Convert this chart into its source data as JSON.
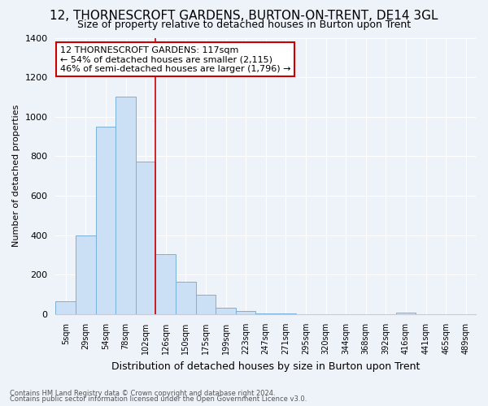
{
  "title": "12, THORNESCROFT GARDENS, BURTON-ON-TRENT, DE14 3GL",
  "subtitle": "Size of property relative to detached houses in Burton upon Trent",
  "xlabel": "Distribution of detached houses by size in Burton upon Trent",
  "ylabel": "Number of detached properties",
  "footnote1": "Contains HM Land Registry data © Crown copyright and database right 2024.",
  "footnote2": "Contains public sector information licensed under the Open Government Licence v3.0.",
  "bin_labels": [
    "5sqm",
    "29sqm",
    "54sqm",
    "78sqm",
    "102sqm",
    "126sqm",
    "150sqm",
    "175sqm",
    "199sqm",
    "223sqm",
    "247sqm",
    "271sqm",
    "295sqm",
    "320sqm",
    "344sqm",
    "368sqm",
    "392sqm",
    "416sqm",
    "441sqm",
    "465sqm",
    "489sqm"
  ],
  "bar_heights": [
    65,
    400,
    950,
    1100,
    775,
    305,
    165,
    100,
    35,
    15,
    5,
    5,
    0,
    0,
    0,
    0,
    0,
    10,
    0,
    0,
    0
  ],
  "bar_color": "#cce0f5",
  "bar_edge_color": "#7ab0d8",
  "vline_x": 4.5,
  "vline_color": "#cc0000",
  "ylim": [
    0,
    1400
  ],
  "yticks": [
    0,
    200,
    400,
    600,
    800,
    1000,
    1200,
    1400
  ],
  "annotation_title": "12 THORNESCROFT GARDENS: 117sqm",
  "annotation_line1": "← 54% of detached houses are smaller (2,115)",
  "annotation_line2": "46% of semi-detached houses are larger (1,796) →",
  "annotation_box_color": "#ffffff",
  "annotation_box_edge": "#cc0000",
  "background_color": "#eef2f9",
  "grid_color": "#ffffff",
  "title_fontsize": 11,
  "subtitle_fontsize": 9
}
